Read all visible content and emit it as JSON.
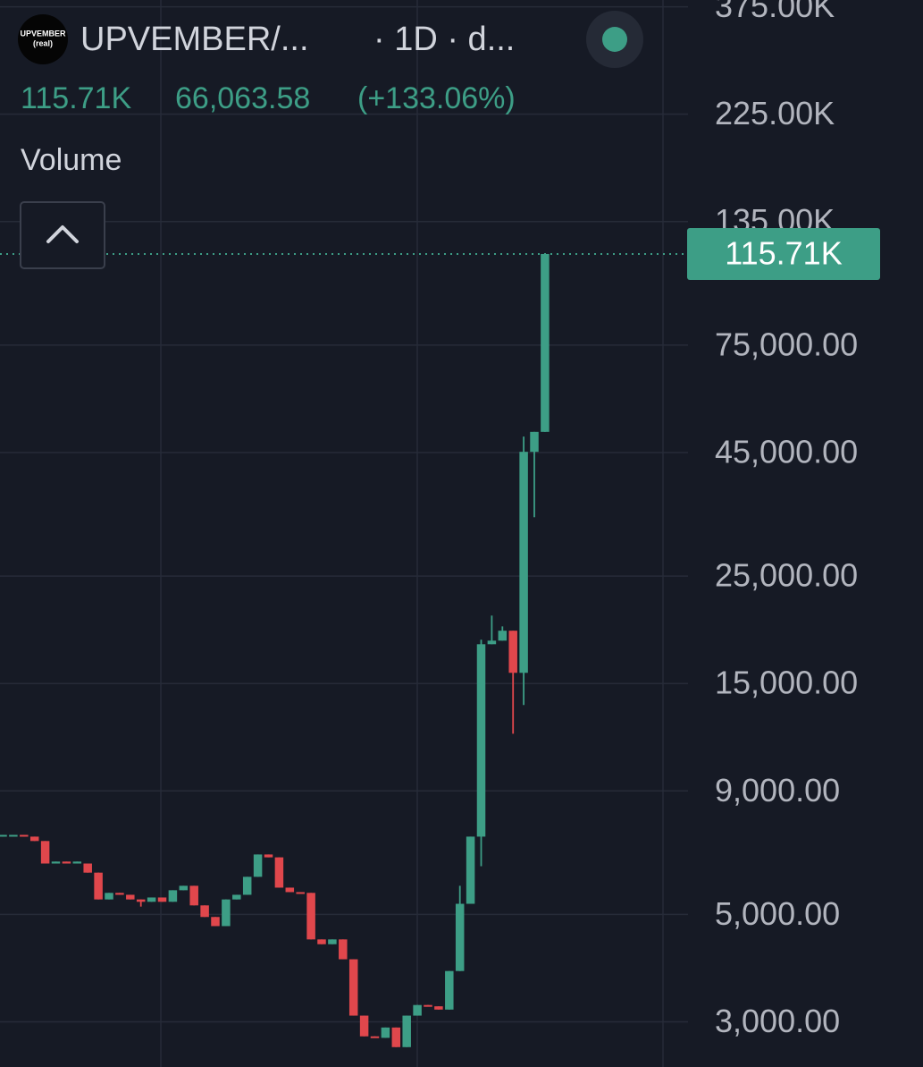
{
  "chart_data": {
    "type": "candlestick",
    "symbol": "UPVEMBER/...",
    "interval": "· 1D · d...",
    "logo_text": [
      "UPVEMBER",
      "(real)"
    ],
    "last_price": {
      "value": 115710,
      "label": "115.71K"
    },
    "change": "66,063.58",
    "change_pct": "(+133.06%)",
    "indicator": "Volume",
    "log_scale": true,
    "grid": true,
    "up_color": "#3d9e86",
    "down_color": "#e0474c",
    "ylim": [
      2420,
      387300
    ],
    "yticks": [
      {
        "value": 3000,
        "label": "3,000.00"
      },
      {
        "value": 5000,
        "label": "5,000.00"
      },
      {
        "value": 9000,
        "label": "9,000.00"
      },
      {
        "value": 15000,
        "label": "15,000.00"
      },
      {
        "value": 25000,
        "label": "25,000.00"
      },
      {
        "value": 45000,
        "label": "45,000.00"
      },
      {
        "value": 75000,
        "label": "75,000.00"
      },
      {
        "value": 135000,
        "label": "135.00K"
      },
      {
        "value": 225000,
        "label": "225.00K"
      },
      {
        "value": 375000,
        "label": "375.00K"
      }
    ],
    "open": [
      7240,
      7300,
      7300,
      7240,
      7090,
      6370,
      6430,
      6370,
      6370,
      6100,
      5370,
      5540,
      5490,
      5370,
      5310,
      5420,
      5310,
      5610,
      5730,
      5220,
      4940,
      4730,
      5370,
      5490,
      5980,
      6650,
      6560,
      5680,
      5560,
      5540,
      4440,
      4340,
      4440,
      4040,
      3090,
      2800,
      2780,
      2920,
      2660,
      3090,
      3250,
      3230,
      3180,
      3820,
      5260,
      7240,
      18080,
      18390,
      19280,
      15780,
      45150,
      49650
    ],
    "high": [
      7300,
      7300,
      7300,
      7240,
      7090,
      6430,
      6430,
      6430,
      6370,
      6100,
      5540,
      5540,
      5490,
      5370,
      5420,
      5420,
      5610,
      5730,
      5730,
      5220,
      4940,
      5370,
      5490,
      5980,
      6650,
      6650,
      6560,
      5680,
      5560,
      5540,
      4440,
      4440,
      4440,
      4040,
      3090,
      2800,
      2920,
      2920,
      3090,
      3250,
      3250,
      3230,
      3820,
      5730,
      7240,
      18470,
      20720,
      19680,
      19280,
      48550,
      49650,
      115710
    ],
    "low": [
      7240,
      7300,
      7240,
      7090,
      6370,
      6370,
      6370,
      6370,
      6100,
      5370,
      5370,
      5490,
      5370,
      5190,
      5310,
      5310,
      5310,
      5610,
      5220,
      4940,
      4730,
      4730,
      5370,
      5490,
      5980,
      6560,
      5680,
      5560,
      5540,
      4440,
      4340,
      4340,
      4040,
      3090,
      2800,
      2780,
      2780,
      2660,
      2660,
      3090,
      3230,
      3180,
      3180,
      3820,
      5260,
      6290,
      18080,
      18390,
      11810,
      13540,
      33080,
      49650
    ],
    "close": [
      7300,
      7300,
      7240,
      7090,
      6370,
      6430,
      6370,
      6430,
      6100,
      5370,
      5540,
      5490,
      5370,
      5310,
      5420,
      5310,
      5610,
      5730,
      5220,
      4940,
      4730,
      5370,
      5490,
      5980,
      6650,
      6560,
      5680,
      5560,
      5540,
      4440,
      4340,
      4440,
      4040,
      3090,
      2800,
      2780,
      2920,
      2660,
      3090,
      3250,
      3230,
      3180,
      3820,
      5260,
      7240,
      18080,
      18390,
      19280,
      15780,
      45150,
      49650,
      115710
    ]
  }
}
